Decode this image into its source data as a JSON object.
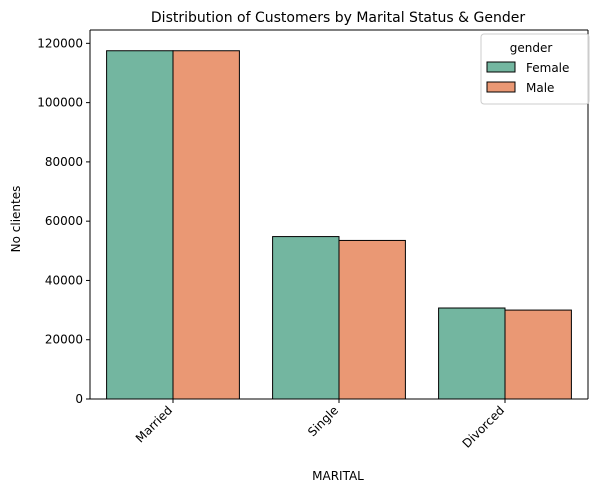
{
  "chart_data": {
    "type": "bar",
    "title": "Distribution of Customers by Marital Status & Gender",
    "xlabel": "MARITAL",
    "ylabel": "No clientes",
    "categories": [
      "Married",
      "Single",
      "Divorced"
    ],
    "series": [
      {
        "name": "Female",
        "values": [
          117500,
          54800,
          30700
        ],
        "color": "#73b6a0"
      },
      {
        "name": "Male",
        "values": [
          117500,
          53500,
          30000
        ],
        "color": "#ea9874"
      }
    ],
    "ylim": [
      0,
      124500
    ],
    "yticks": [
      0,
      20000,
      40000,
      60000,
      80000,
      100000,
      120000
    ],
    "legend": {
      "title": "gender",
      "position": "top-right"
    },
    "grid": false
  }
}
